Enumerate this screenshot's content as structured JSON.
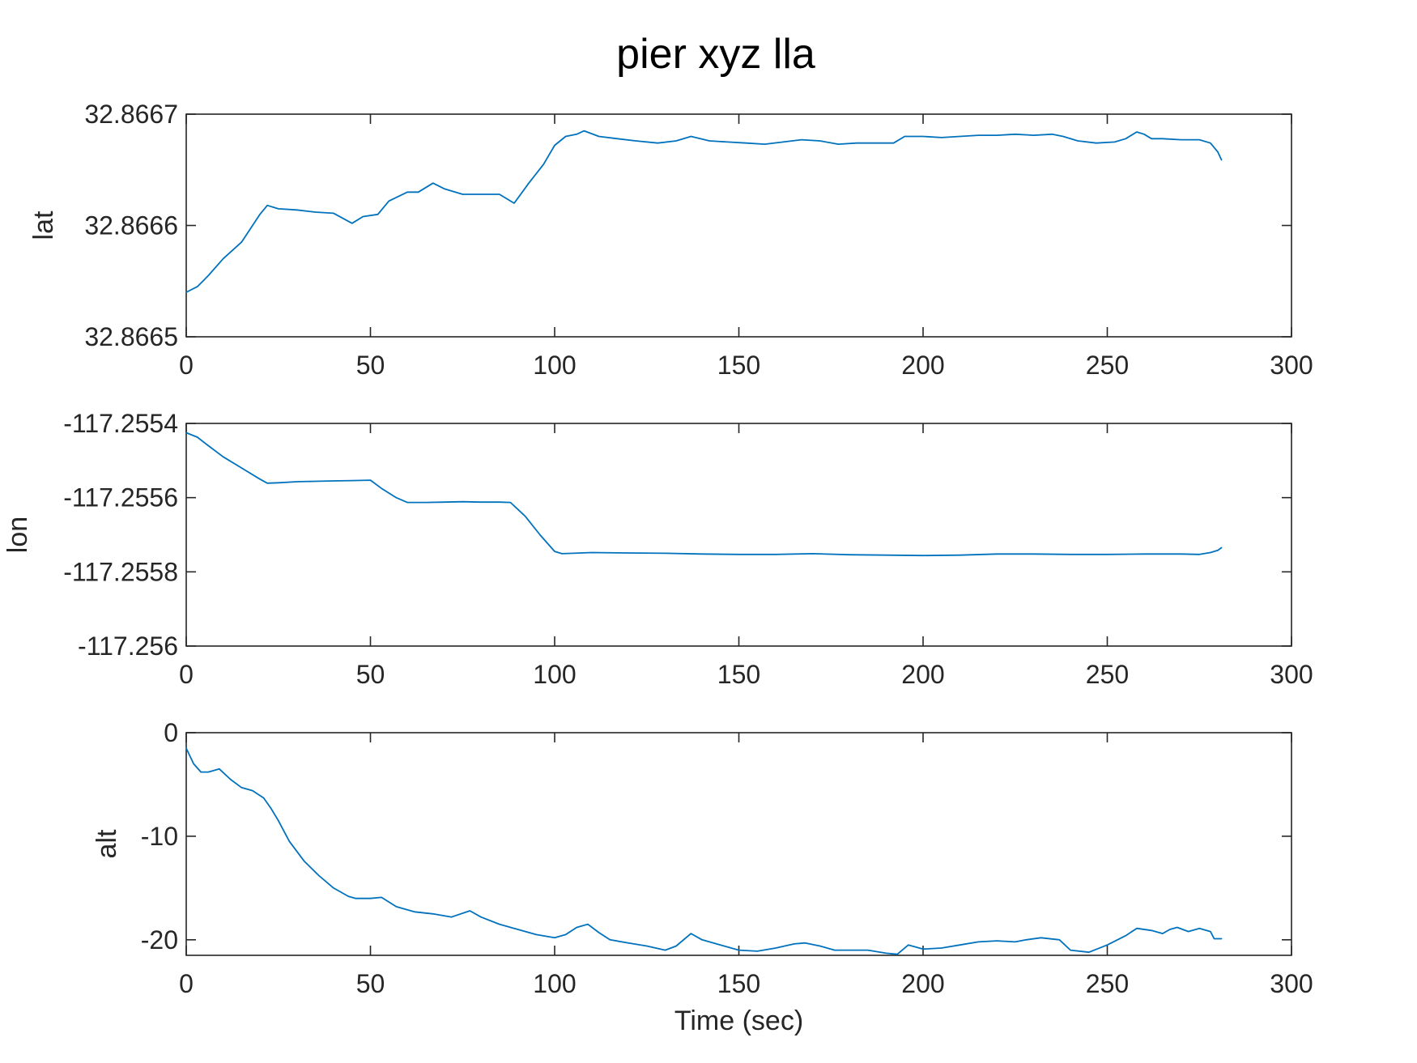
{
  "figure_title": "pier xyz lla",
  "colors": {
    "series": "#0072BD",
    "axes": "#262626",
    "background": "#ffffff"
  },
  "chart_data": [
    {
      "type": "line",
      "title": "",
      "xlabel": "",
      "ylabel": "lat",
      "xlim": [
        0,
        300
      ],
      "ylim": [
        32.8665,
        32.8667
      ],
      "xticks": [
        0,
        50,
        100,
        150,
        200,
        250,
        300
      ],
      "xtick_labels": [
        "0",
        "50",
        "100",
        "150",
        "200",
        "250",
        "300"
      ],
      "yticks": [
        32.8665,
        32.8666,
        32.8667
      ],
      "ytick_labels": [
        "32.8665",
        "32.8666",
        "32.8667"
      ],
      "grid": false,
      "series": [
        {
          "x": [
            0,
            3,
            6,
            10,
            15,
            20,
            22,
            25,
            30,
            35,
            40,
            45,
            48,
            52,
            55,
            60,
            63,
            67,
            70,
            75,
            80,
            85,
            89,
            93,
            97,
            100,
            103,
            106,
            108,
            112,
            117,
            122,
            128,
            133,
            137,
            142,
            147,
            152,
            157,
            162,
            167,
            172,
            177,
            182,
            187,
            192,
            195,
            200,
            205,
            210,
            215,
            220,
            225,
            230,
            235,
            238,
            242,
            247,
            252,
            255,
            258,
            260,
            262,
            265,
            270,
            275,
            278,
            280,
            281
          ],
          "y": [
            32.86654,
            32.866545,
            32.866555,
            32.86657,
            32.866585,
            32.86661,
            32.866618,
            32.866615,
            32.866614,
            32.866612,
            32.866611,
            32.866602,
            32.866608,
            32.86661,
            32.866622,
            32.86663,
            32.86663,
            32.866638,
            32.866633,
            32.866628,
            32.866628,
            32.866628,
            32.86662,
            32.866638,
            32.866655,
            32.866672,
            32.86668,
            32.866682,
            32.866685,
            32.86668,
            32.866678,
            32.866676,
            32.866674,
            32.866676,
            32.86668,
            32.866676,
            32.866675,
            32.866674,
            32.866673,
            32.866675,
            32.866677,
            32.866676,
            32.866673,
            32.866674,
            32.866674,
            32.866674,
            32.86668,
            32.86668,
            32.866679,
            32.86668,
            32.866681,
            32.866681,
            32.866682,
            32.866681,
            32.866682,
            32.86668,
            32.866676,
            32.866674,
            32.866675,
            32.866678,
            32.866684,
            32.866682,
            32.866678,
            32.866678,
            32.866677,
            32.866677,
            32.866674,
            32.866666,
            32.866659
          ]
        }
      ]
    },
    {
      "type": "line",
      "title": "",
      "xlabel": "",
      "ylabel": "lon",
      "xlim": [
        0,
        300
      ],
      "ylim": [
        -117.256,
        -117.2554
      ],
      "xticks": [
        0,
        50,
        100,
        150,
        200,
        250,
        300
      ],
      "xtick_labels": [
        "0",
        "50",
        "100",
        "150",
        "200",
        "250",
        "300"
      ],
      "yticks": [
        -117.256,
        -117.2558,
        -117.2556,
        -117.2554
      ],
      "ytick_labels": [
        "-117.256",
        "-117.2558",
        "-117.2556",
        "-117.2554"
      ],
      "grid": false,
      "series": [
        {
          "x": [
            0,
            3,
            6,
            10,
            15,
            20,
            22,
            25,
            30,
            35,
            40,
            45,
            50,
            53,
            57,
            60,
            65,
            70,
            75,
            80,
            85,
            88,
            92,
            96,
            100,
            102,
            105,
            110,
            120,
            130,
            140,
            150,
            160,
            170,
            180,
            190,
            200,
            210,
            220,
            230,
            240,
            250,
            260,
            270,
            275,
            278,
            280,
            281
          ],
          "y": [
            -117.255425,
            -117.255437,
            -117.25546,
            -117.25549,
            -117.25552,
            -117.25555,
            -117.255561,
            -117.25556,
            -117.255557,
            -117.255556,
            -117.255555,
            -117.255554,
            -117.255553,
            -117.255575,
            -117.2556,
            -117.255613,
            -117.255613,
            -117.255612,
            -117.255611,
            -117.255612,
            -117.255612,
            -117.255613,
            -117.25565,
            -117.2557,
            -117.255745,
            -117.255751,
            -117.25575,
            -117.255748,
            -117.255749,
            -117.25575,
            -117.255752,
            -117.255753,
            -117.255753,
            -117.255751,
            -117.255754,
            -117.255755,
            -117.255756,
            -117.255755,
            -117.255752,
            -117.255752,
            -117.255753,
            -117.255753,
            -117.255752,
            -117.255752,
            -117.255753,
            -117.255748,
            -117.255742,
            -117.255735
          ]
        }
      ]
    },
    {
      "type": "line",
      "title": "",
      "xlabel": "Time (sec)",
      "ylabel": "alt",
      "xlim": [
        0,
        300
      ],
      "ylim": [
        -21.5,
        0
      ],
      "xticks": [
        0,
        50,
        100,
        150,
        200,
        250,
        300
      ],
      "xtick_labels": [
        "0",
        "50",
        "100",
        "150",
        "200",
        "250",
        "300"
      ],
      "yticks": [
        -20,
        -10,
        0
      ],
      "ytick_labels": [
        "-20",
        "-10",
        "0"
      ],
      "grid": false,
      "series": [
        {
          "x": [
            0,
            2,
            4,
            6,
            9,
            12,
            15,
            18,
            21,
            23,
            25,
            28,
            32,
            36,
            40,
            44,
            46,
            50,
            53,
            57,
            62,
            67,
            72,
            77,
            80,
            85,
            90,
            95,
            100,
            103,
            106,
            109,
            112,
            115,
            120,
            125,
            130,
            133,
            137,
            140,
            145,
            150,
            155,
            160,
            165,
            168,
            172,
            176,
            180,
            185,
            190,
            193,
            196,
            200,
            205,
            210,
            215,
            220,
            225,
            228,
            232,
            237,
            240,
            245,
            250,
            255,
            258,
            262,
            265,
            267,
            269,
            272,
            275,
            278,
            279,
            280,
            281
          ],
          "y": [
            -1.5,
            -3,
            -3.8,
            -3.8,
            -3.5,
            -4.5,
            -5.3,
            -5.6,
            -6.3,
            -7.3,
            -8.5,
            -10.5,
            -12.4,
            -13.8,
            -15,
            -15.8,
            -16,
            -16,
            -15.9,
            -16.8,
            -17.3,
            -17.5,
            -17.8,
            -17.2,
            -17.8,
            -18.5,
            -19,
            -19.5,
            -19.8,
            -19.5,
            -18.8,
            -18.5,
            -19.3,
            -20,
            -20.3,
            -20.6,
            -21,
            -20.6,
            -19.4,
            -20,
            -20.5,
            -21,
            -21.1,
            -20.8,
            -20.4,
            -20.3,
            -20.6,
            -21,
            -21,
            -21,
            -21.3,
            -21.4,
            -20.5,
            -20.9,
            -20.8,
            -20.5,
            -20.2,
            -20.1,
            -20.2,
            -20,
            -19.8,
            -20,
            -21,
            -21.2,
            -20.5,
            -19.6,
            -18.9,
            -19.1,
            -19.4,
            -19,
            -18.8,
            -19.2,
            -18.9,
            -19.2,
            -19.9,
            -19.9,
            -19.9
          ]
        }
      ]
    }
  ]
}
